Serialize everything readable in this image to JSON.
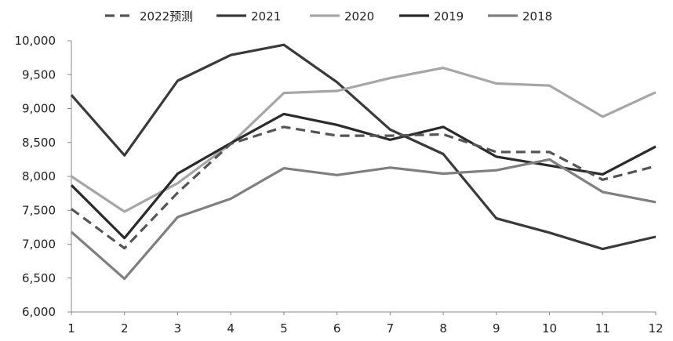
{
  "chart_data": {
    "type": "line",
    "title": "",
    "xlabel": "",
    "ylabel": "",
    "x": [
      1,
      2,
      3,
      4,
      5,
      6,
      7,
      8,
      9,
      10,
      11,
      12
    ],
    "ylim": [
      6000,
      10000
    ],
    "y_tick_step": 500,
    "y_tick_labels": [
      "6,000",
      "6,500",
      "7,000",
      "7,500",
      "8,000",
      "8,500",
      "9,000",
      "9,500",
      "10,000"
    ],
    "x_tick_labels": [
      "1",
      "2",
      "3",
      "4",
      "5",
      "6",
      "7",
      "8",
      "9",
      "10",
      "11",
      "12"
    ],
    "grid": false,
    "legend_position": "top",
    "series": [
      {
        "name": "2022预测",
        "color": "#555555",
        "style": "dashed",
        "values": [
          7520,
          6940,
          7760,
          8480,
          8730,
          8600,
          8600,
          8620,
          8360,
          8360,
          7950,
          8150
        ]
      },
      {
        "name": "2021",
        "color": "#3a3a3a",
        "style": "solid",
        "values": [
          9200,
          8310,
          9410,
          9790,
          9940,
          9390,
          8690,
          8330,
          7380,
          7170,
          6930,
          7110
        ]
      },
      {
        "name": "2020",
        "color": "#a6a6a6",
        "style": "solid",
        "values": [
          8000,
          7480,
          7900,
          8480,
          9230,
          9260,
          9450,
          9600,
          9370,
          9340,
          8880,
          9240
        ]
      },
      {
        "name": "2019",
        "color": "#2a2a2a",
        "style": "solid",
        "values": [
          7870,
          7090,
          8040,
          8490,
          8920,
          8760,
          8540,
          8730,
          8290,
          8160,
          8030,
          8440
        ]
      },
      {
        "name": "2018",
        "color": "#7f7f7f",
        "style": "solid",
        "values": [
          7180,
          6490,
          7400,
          7670,
          8120,
          8020,
          8130,
          8040,
          8090,
          8250,
          7770,
          7620
        ]
      }
    ]
  }
}
